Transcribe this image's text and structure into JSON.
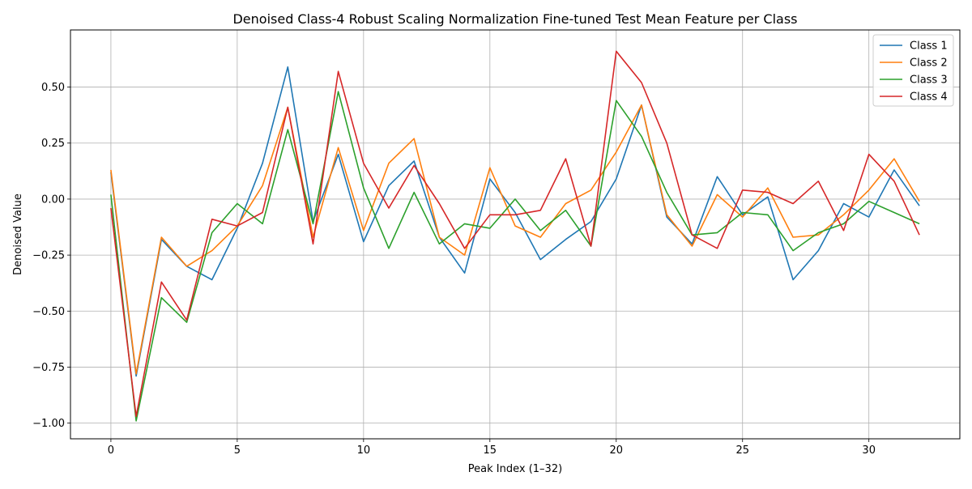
{
  "chart_data": {
    "type": "line",
    "title": "Denoised Class-4 Robust Scaling Normalization Fine-tuned Test Mean Feature per Class",
    "xlabel": "Peak Index (1–32)",
    "ylabel": "Denoised Value",
    "xlim": [
      -1.6,
      33.6
    ],
    "ylim": [
      -1.07,
      0.755
    ],
    "xticks": [
      0,
      5,
      10,
      15,
      20,
      25,
      30
    ],
    "yticks": [
      -1.0,
      -0.75,
      -0.5,
      -0.25,
      0.0,
      0.25,
      0.5
    ],
    "xtick_labels": [
      "0",
      "5",
      "10",
      "15",
      "20",
      "25",
      "30"
    ],
    "ytick_labels": [
      "−1.00",
      "−0.75",
      "−0.50",
      "−0.25",
      "0.00",
      "0.25",
      "0.50"
    ],
    "grid": true,
    "legend_position": "top-right",
    "x": [
      0,
      1,
      2,
      3,
      4,
      5,
      6,
      7,
      8,
      9,
      10,
      11,
      12,
      13,
      14,
      15,
      16,
      17,
      18,
      19,
      20,
      21,
      22,
      23,
      24,
      25,
      26,
      27,
      28,
      29,
      30,
      31,
      32
    ],
    "series": [
      {
        "name": "Class 1",
        "color": "#1f77b4",
        "values": [
          0.12,
          -0.79,
          -0.18,
          -0.3,
          -0.36,
          -0.13,
          0.16,
          0.59,
          -0.1,
          0.2,
          -0.19,
          0.06,
          0.17,
          -0.17,
          -0.33,
          0.09,
          -0.06,
          -0.27,
          -0.18,
          -0.1,
          0.09,
          0.42,
          -0.08,
          -0.2,
          0.1,
          -0.07,
          0.01,
          -0.36,
          -0.23,
          -0.02,
          -0.08,
          0.13,
          -0.03
        ]
      },
      {
        "name": "Class 2",
        "color": "#ff7f0e",
        "values": [
          0.13,
          -0.78,
          -0.17,
          -0.3,
          -0.23,
          -0.12,
          0.06,
          0.41,
          -0.17,
          0.23,
          -0.14,
          0.16,
          0.27,
          -0.17,
          -0.25,
          0.14,
          -0.12,
          -0.17,
          -0.02,
          0.04,
          0.21,
          0.42,
          -0.07,
          -0.21,
          0.02,
          -0.08,
          0.05,
          -0.17,
          -0.16,
          -0.07,
          0.04,
          0.18,
          -0.01
        ]
      },
      {
        "name": "Class 3",
        "color": "#2ca02c",
        "values": [
          0.02,
          -0.99,
          -0.44,
          -0.55,
          -0.15,
          -0.02,
          -0.11,
          0.31,
          -0.11,
          0.48,
          0.05,
          -0.22,
          0.03,
          -0.2,
          -0.11,
          -0.13,
          0.0,
          -0.14,
          -0.05,
          -0.21,
          0.44,
          0.28,
          0.03,
          -0.16,
          -0.15,
          -0.06,
          -0.07,
          -0.23,
          -0.15,
          -0.11,
          -0.01,
          -0.06,
          -0.11
        ]
      },
      {
        "name": "Class 4",
        "color": "#d62728",
        "values": [
          -0.04,
          -0.97,
          -0.37,
          -0.54,
          -0.09,
          -0.12,
          -0.06,
          0.41,
          -0.2,
          0.57,
          0.16,
          -0.04,
          0.15,
          -0.02,
          -0.22,
          -0.07,
          -0.07,
          -0.05,
          0.18,
          -0.21,
          0.66,
          0.52,
          0.25,
          -0.16,
          -0.22,
          0.04,
          0.03,
          -0.02,
          0.08,
          -0.14,
          0.2,
          0.08,
          -0.16
        ]
      }
    ]
  }
}
